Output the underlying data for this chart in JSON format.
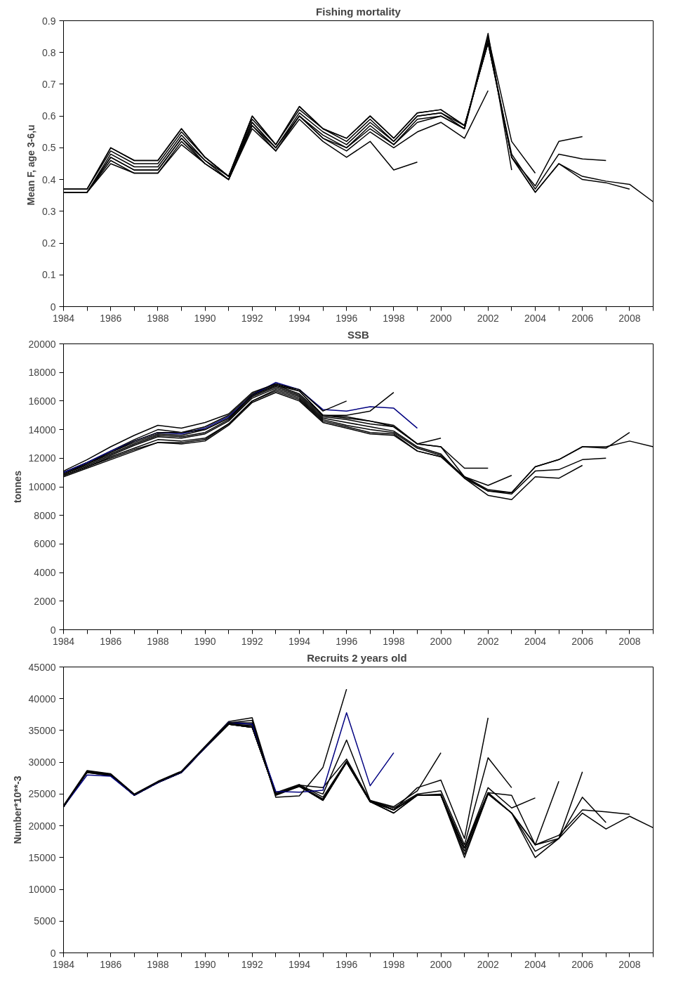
{
  "chart_data": [
    {
      "type": "line",
      "title": "Fishing mortality",
      "ylabel": "Mean  F, age 3-6,u",
      "x": [
        1984,
        1985,
        1986,
        1987,
        1988,
        1989,
        1990,
        1991,
        1992,
        1993,
        1994,
        1995,
        1996,
        1997,
        1998,
        1999,
        2000,
        2001,
        2002,
        2003,
        2004,
        2005,
        2006,
        2007,
        2008,
        2009
      ],
      "xlim": [
        1984,
        2009
      ],
      "xticks": [
        1984,
        {
          "value": 1985,
          "label": null
        },
        1986,
        {
          "value": 1987,
          "label": null
        },
        1988,
        {
          "value": 1989,
          "label": null
        },
        1990,
        {
          "value": 1991,
          "label": null
        },
        1992,
        {
          "value": 1993,
          "label": null
        },
        1994,
        {
          "value": 1995,
          "label": null
        },
        1996,
        {
          "value": 1997,
          "label": null
        },
        1998,
        {
          "value": 1999,
          "label": null
        },
        2000,
        {
          "value": 2001,
          "label": null
        },
        2002,
        {
          "value": 2003,
          "label": null
        },
        2004,
        {
          "value": 2005,
          "label": null
        },
        2006,
        {
          "value": 2007,
          "label": null
        },
        2008,
        {
          "value": 2009,
          "label": null
        }
      ],
      "ylim": [
        0,
        0.9
      ],
      "yticks": [
        0,
        0.1,
        0.2,
        0.3,
        0.4,
        0.5,
        0.6,
        0.7,
        0.8,
        0.9
      ],
      "grid": false,
      "marker": "none",
      "line_style": "solid",
      "series": [
        {
          "color": "#000000",
          "values": [
            0.37,
            0.37,
            0.5,
            0.46,
            0.46,
            0.56,
            0.47,
            0.41,
            0.6,
            0.51,
            0.63,
            0.56,
            0.53,
            0.6,
            0.53,
            0.61,
            0.62,
            0.57,
            0.83,
            0.47,
            0.36,
            0.45,
            0.41,
            0.395,
            0.385,
            0.33
          ]
        },
        {
          "color": "#000000",
          "values": [
            0.37,
            0.37,
            0.5,
            0.46,
            0.46,
            0.56,
            0.47,
            0.41,
            0.6,
            0.51,
            0.63,
            0.56,
            0.53,
            0.6,
            0.53,
            0.61,
            0.62,
            0.57,
            0.83,
            0.47,
            0.36,
            0.45,
            0.4,
            0.39,
            0.37,
            null
          ]
        },
        {
          "color": "#000000",
          "values": [
            0.37,
            0.37,
            0.49,
            0.45,
            0.45,
            0.55,
            0.47,
            0.41,
            0.59,
            0.51,
            0.62,
            0.56,
            0.52,
            0.59,
            0.52,
            0.6,
            0.61,
            0.57,
            0.83,
            0.48,
            0.37,
            0.48,
            0.465,
            0.46,
            null,
            null
          ]
        },
        {
          "color": "#000000",
          "values": [
            0.36,
            0.36,
            0.48,
            0.44,
            0.44,
            0.54,
            0.46,
            0.41,
            0.58,
            0.5,
            0.61,
            0.55,
            0.51,
            0.58,
            0.52,
            0.6,
            0.61,
            0.56,
            0.84,
            0.47,
            0.38,
            0.52,
            0.535,
            null,
            null,
            null
          ]
        },
        {
          "color": "#000000",
          "values": [
            0.36,
            0.36,
            0.47,
            0.43,
            0.43,
            0.53,
            0.46,
            0.4,
            0.58,
            0.5,
            0.6,
            0.54,
            0.5,
            0.57,
            0.51,
            0.59,
            0.6,
            0.56,
            0.85,
            0.52,
            0.42,
            null,
            null,
            null,
            null,
            null
          ]
        },
        {
          "color": "#000000",
          "values": [
            0.36,
            0.36,
            0.47,
            0.43,
            0.43,
            0.53,
            0.45,
            0.4,
            0.57,
            0.5,
            0.6,
            0.53,
            0.5,
            0.56,
            0.51,
            0.58,
            0.6,
            0.56,
            0.86,
            0.43,
            null,
            null,
            null,
            null,
            null,
            null
          ]
        },
        {
          "color": "#000000",
          "values": [
            0.36,
            0.36,
            0.46,
            0.42,
            0.42,
            0.52,
            0.45,
            0.4,
            0.57,
            0.49,
            0.6,
            0.53,
            0.49,
            0.55,
            0.5,
            0.55,
            0.58,
            0.53,
            0.68,
            null,
            null,
            null,
            null,
            null,
            null,
            null
          ]
        },
        {
          "color": "#000000",
          "values": [
            0.36,
            0.36,
            0.45,
            0.42,
            0.42,
            0.51,
            0.45,
            0.4,
            0.56,
            0.49,
            0.59,
            0.52,
            0.47,
            0.52,
            0.43,
            0.455,
            null,
            null,
            null,
            null,
            null,
            null,
            null,
            null,
            null,
            null
          ]
        }
      ]
    },
    {
      "type": "line",
      "title": "SSB",
      "ylabel": "tonnes",
      "x": [
        1984,
        1985,
        1986,
        1987,
        1988,
        1989,
        1990,
        1991,
        1992,
        1993,
        1994,
        1995,
        1996,
        1997,
        1998,
        1999,
        2000,
        2001,
        2002,
        2003,
        2004,
        2005,
        2006,
        2007,
        2008,
        2009
      ],
      "xlim": [
        1984,
        2009
      ],
      "xticks": [
        1984,
        {
          "value": 1985,
          "label": null
        },
        1986,
        {
          "value": 1987,
          "label": null
        },
        1988,
        {
          "value": 1989,
          "label": null
        },
        1990,
        {
          "value": 1991,
          "label": null
        },
        1992,
        {
          "value": 1993,
          "label": null
        },
        1994,
        {
          "value": 1995,
          "label": null
        },
        1996,
        {
          "value": 1997,
          "label": null
        },
        1998,
        {
          "value": 1999,
          "label": null
        },
        2000,
        {
          "value": 2001,
          "label": null
        },
        2002,
        {
          "value": 2003,
          "label": null
        },
        2004,
        {
          "value": 2005,
          "label": null
        },
        2006,
        {
          "value": 2007,
          "label": null
        },
        2008,
        {
          "value": 2009,
          "label": null
        }
      ],
      "ylim": [
        0,
        20000
      ],
      "yticks": [
        0,
        2000,
        4000,
        6000,
        8000,
        10000,
        12000,
        14000,
        16000,
        18000,
        20000
      ],
      "grid": false,
      "marker": "none",
      "line_style": "solid",
      "series": [
        {
          "color": "#000000",
          "values": [
            10700,
            11300,
            11900,
            12500,
            13100,
            13000,
            13200,
            14300,
            15900,
            16600,
            16000,
            14500,
            14100,
            13700,
            13600,
            12500,
            12100,
            10700,
            9800,
            9600,
            11400,
            11900,
            12800,
            12800,
            13200,
            12800
          ]
        },
        {
          "color": "#000000",
          "values": [
            10800,
            11400,
            12000,
            12600,
            13100,
            13100,
            13300,
            14400,
            16000,
            16700,
            16100,
            14600,
            14200,
            13800,
            13700,
            12500,
            12100,
            10600,
            9700,
            9600,
            11400,
            11900,
            12800,
            12700,
            13800,
            null
          ]
        },
        {
          "color": "#000000",
          "values": [
            10800,
            11400,
            12100,
            12700,
            13300,
            13200,
            13400,
            14400,
            16000,
            16800,
            16200,
            14700,
            14300,
            14000,
            13800,
            12700,
            12200,
            10700,
            9700,
            9500,
            11100,
            11200,
            11900,
            12000,
            null,
            null
          ]
        },
        {
          "color": "#000000",
          "values": [
            10900,
            11500,
            12200,
            12900,
            13500,
            13400,
            13700,
            14600,
            16200,
            16900,
            16300,
            14800,
            14500,
            14200,
            13900,
            12800,
            12300,
            10600,
            9400,
            9100,
            10700,
            10600,
            11500,
            null,
            null,
            null
          ]
        },
        {
          "color": "#000000",
          "values": [
            11000,
            11600,
            12300,
            13000,
            13600,
            13500,
            13800,
            14700,
            16300,
            17000,
            16400,
            14900,
            14700,
            14400,
            14200,
            13000,
            12800,
            10700,
            10100,
            10800,
            null,
            null,
            null,
            null,
            null,
            null
          ]
        },
        {
          "color": "#000000",
          "values": [
            11000,
            11700,
            12400,
            13100,
            13700,
            13600,
            14000,
            14800,
            16400,
            17100,
            16500,
            15000,
            14800,
            14600,
            14300,
            13000,
            12800,
            11300,
            11300,
            null,
            null,
            null,
            null,
            null,
            null,
            null
          ]
        },
        {
          "color": "#000000",
          "values": [
            11000,
            11700,
            12500,
            13300,
            14000,
            13800,
            14200,
            15000,
            16500,
            17200,
            16700,
            15000,
            14900,
            14600,
            14200,
            13000,
            13400,
            null,
            null,
            null,
            null,
            null,
            null,
            null,
            null,
            null
          ]
        },
        {
          "color": "#000080",
          "values": [
            11000,
            11700,
            12500,
            13200,
            13800,
            13700,
            14100,
            14900,
            16400,
            17300,
            16800,
            15400,
            15300,
            15600,
            15500,
            14100,
            null,
            null,
            null,
            null,
            null,
            null,
            null,
            null,
            null,
            null
          ]
        },
        {
          "color": "#000000",
          "values": [
            10900,
            11600,
            12400,
            13200,
            13800,
            13800,
            14000,
            14800,
            16400,
            17100,
            16700,
            15000,
            15000,
            15300,
            16600,
            null,
            null,
            null,
            null,
            null,
            null,
            null,
            null,
            null,
            null,
            null
          ]
        },
        {
          "color": "#000000",
          "values": [
            11100,
            11900,
            12800,
            13600,
            14300,
            14100,
            14500,
            15100,
            16600,
            17200,
            16800,
            15300,
            16000,
            null,
            null,
            null,
            null,
            null,
            null,
            null,
            null,
            null,
            null,
            null,
            null,
            null
          ]
        }
      ]
    },
    {
      "type": "line",
      "title": "Recruits 2  years old",
      "ylabel": "Number*10**-3",
      "x": [
        1984,
        1985,
        1986,
        1987,
        1988,
        1989,
        1990,
        1991,
        1992,
        1993,
        1994,
        1995,
        1996,
        1997,
        1998,
        1999,
        2000,
        2001,
        2002,
        2003,
        2004,
        2005,
        2006,
        2007,
        2008,
        2009
      ],
      "xlim": [
        1984,
        2009
      ],
      "xticks": [
        1984,
        {
          "value": 1985,
          "label": null
        },
        1986,
        {
          "value": 1987,
          "label": null
        },
        1988,
        {
          "value": 1989,
          "label": null
        },
        1990,
        {
          "value": 1991,
          "label": null
        },
        1992,
        {
          "value": 1993,
          "label": null
        },
        1994,
        {
          "value": 1995,
          "label": null
        },
        1996,
        {
          "value": 1997,
          "label": null
        },
        1998,
        {
          "value": 1999,
          "label": null
        },
        2000,
        {
          "value": 2001,
          "label": null
        },
        2002,
        {
          "value": 2003,
          "label": null
        },
        2004,
        {
          "value": 2005,
          "label": null
        },
        2006,
        {
          "value": 2007,
          "label": null
        },
        2008,
        {
          "value": 2009,
          "label": null
        }
      ],
      "ylim": [
        0,
        45000
      ],
      "yticks": [
        0,
        5000,
        10000,
        15000,
        20000,
        25000,
        30000,
        35000,
        40000,
        45000
      ],
      "grid": false,
      "marker": "none",
      "line_style": "solid",
      "series": [
        {
          "color": "#000000",
          "values": [
            23000,
            28500,
            28000,
            24800,
            26800,
            28400,
            32300,
            36000,
            35500,
            25000,
            26300,
            24200,
            30000,
            23800,
            22500,
            24800,
            24800,
            16500,
            25200,
            22000,
            17000,
            18000,
            22000,
            19500,
            21500,
            19700
          ]
        },
        {
          "color": "#000000",
          "values": [
            23000,
            28500,
            28000,
            24800,
            26800,
            28400,
            32300,
            36000,
            35500,
            25000,
            26300,
            24200,
            30000,
            23800,
            22500,
            24800,
            24800,
            16500,
            25200,
            22000,
            17000,
            18500,
            22500,
            22200,
            21800,
            null
          ]
        },
        {
          "color": "#000000",
          "values": [
            23000,
            28400,
            27900,
            24800,
            26800,
            28400,
            32300,
            36000,
            35500,
            25000,
            26200,
            24000,
            30000,
            23800,
            22000,
            24800,
            24800,
            15500,
            25000,
            22000,
            16000,
            18000,
            24500,
            20500,
            null,
            null
          ]
        },
        {
          "color": "#000000",
          "values": [
            23000,
            28400,
            27900,
            24800,
            26800,
            28400,
            32300,
            36000,
            35500,
            25000,
            26200,
            24000,
            30000,
            23800,
            22000,
            24800,
            24800,
            15000,
            25000,
            22000,
            15000,
            18000,
            28500,
            null,
            null,
            null
          ]
        },
        {
          "color": "#000000",
          "values": [
            23000,
            28500,
            28000,
            24800,
            26800,
            28400,
            32300,
            36000,
            35600,
            25000,
            26300,
            24000,
            30000,
            23800,
            22500,
            24800,
            24800,
            16000,
            25200,
            24800,
            17000,
            27000,
            null,
            null,
            null,
            null
          ]
        },
        {
          "color": "#000000",
          "values": [
            23000,
            28500,
            28000,
            24800,
            26800,
            28400,
            32300,
            36000,
            35800,
            25000,
            26300,
            24000,
            30000,
            23800,
            22500,
            24800,
            25000,
            16500,
            26000,
            22800,
            24400,
            null,
            null,
            null,
            null,
            null
          ]
        },
        {
          "color": "#000000",
          "values": [
            23000,
            28500,
            28000,
            24800,
            26800,
            28400,
            32300,
            36100,
            36000,
            25200,
            26500,
            24500,
            30200,
            23900,
            22800,
            25000,
            25500,
            17000,
            30700,
            26000,
            null,
            null,
            null,
            null,
            null,
            null
          ]
        },
        {
          "color": "#000000",
          "values": [
            23100,
            28600,
            28100,
            24900,
            26900,
            28500,
            32400,
            36200,
            36200,
            25000,
            26400,
            26000,
            30500,
            24000,
            22500,
            26000,
            27200,
            18000,
            37000,
            null,
            null,
            null,
            null,
            null,
            null,
            null
          ]
        },
        {
          "color": "#000000",
          "values": [
            23200,
            28700,
            28200,
            25000,
            27000,
            28600,
            32500,
            36400,
            37000,
            24800,
            26200,
            25000,
            33500,
            24000,
            23000,
            25500,
            31500,
            null,
            null,
            null,
            null,
            null,
            null,
            null,
            null,
            null
          ]
        },
        {
          "color": "#000080",
          "values": [
            23000,
            28000,
            27800,
            24800,
            26800,
            28400,
            32300,
            36300,
            36000,
            25400,
            25300,
            25600,
            37800,
            26300,
            31500,
            null,
            null,
            null,
            null,
            null,
            null,
            null,
            null,
            null,
            null,
            null
          ]
        },
        {
          "color": "#000000",
          "values": [
            23000,
            28600,
            28100,
            24900,
            26900,
            28500,
            32400,
            36200,
            36600,
            24500,
            24700,
            29200,
            41500,
            null,
            null,
            null,
            null,
            null,
            null,
            null,
            null,
            null,
            null,
            null,
            null,
            null
          ]
        }
      ]
    }
  ]
}
